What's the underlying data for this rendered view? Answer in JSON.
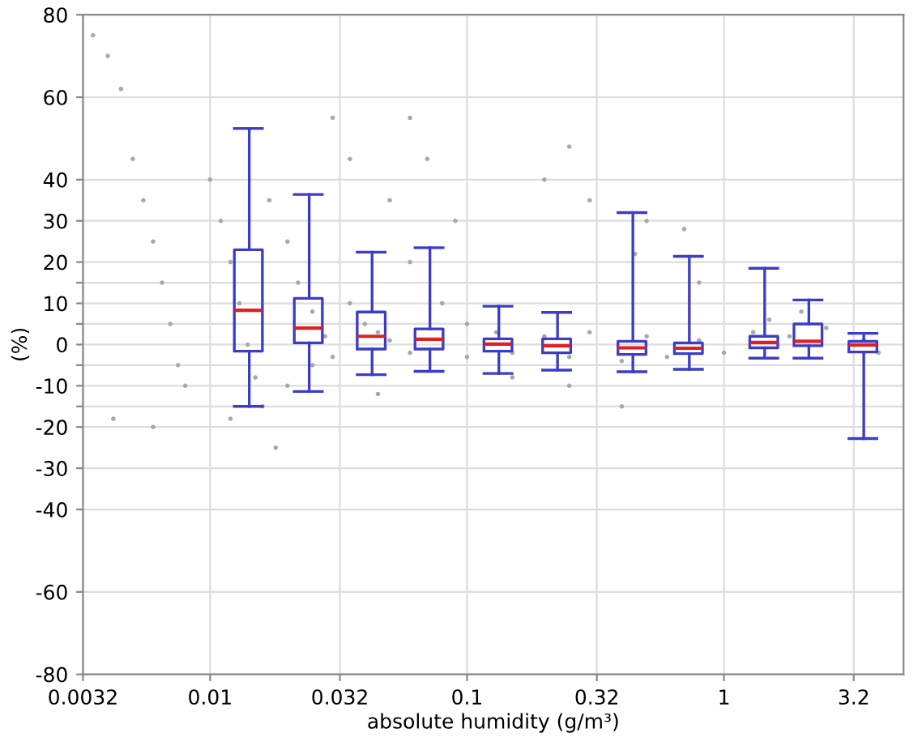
{
  "chart_data": {
    "type": "box",
    "xlabel": "absolute humidity (g/m³)",
    "ylabel": "(%)",
    "log": "x",
    "xlim": [
      0.0032,
      5
    ],
    "xticks": [
      0.0032,
      0.01,
      0.032,
      0.1,
      0.32,
      1,
      3.2
    ],
    "ylim": [
      -80,
      80
    ],
    "yticks": [
      -80,
      -60,
      -40,
      -30,
      -20,
      {
        "value": -15,
        "label": null
      },
      -10,
      {
        "value": -5,
        "label": null
      },
      0,
      {
        "value": 5,
        "label": null
      },
      10,
      {
        "value": 15,
        "label": null
      },
      20,
      30,
      40,
      60,
      80
    ],
    "grid": true,
    "series": [
      {
        "type": "scatter",
        "color": "#a8a8a8",
        "marker": "circle",
        "x": [
          0.0035,
          0.004,
          0.0045,
          0.005,
          0.0055,
          0.006,
          0.0065,
          0.007,
          0.0075,
          0.008,
          0.006,
          0.0042,
          0.01,
          0.011,
          0.012,
          0.013,
          0.014,
          0.015,
          0.016,
          0.018,
          0.017,
          0.02,
          0.022,
          0.025,
          0.028,
          0.03,
          0.02,
          0.025,
          0.035,
          0.04,
          0.045,
          0.05,
          0.06,
          0.035,
          0.05,
          0.06,
          0.08,
          0.1,
          0.1,
          0.13,
          0.15,
          0.2,
          0.25,
          0.3,
          0.4,
          0.5,
          0.6,
          0.8,
          1.0,
          1.3,
          1.8,
          2.5,
          3.5,
          4.0,
          0.06,
          0.07,
          0.09,
          0.2,
          0.25,
          0.3,
          0.5,
          0.45,
          0.7,
          0.8,
          1.5,
          2.0,
          0.25,
          0.4,
          0.15,
          0.045,
          0.03,
          0.012
        ],
        "values": [
          75,
          70,
          62,
          45,
          35,
          25,
          15,
          5,
          -5,
          -10,
          -20,
          -18,
          40,
          30,
          20,
          10,
          0,
          -8,
          -15,
          -25,
          35,
          25,
          15,
          8,
          2,
          -3,
          -10,
          -5,
          10,
          5,
          3,
          1,
          -2,
          45,
          35,
          20,
          10,
          5,
          -3,
          3,
          -2,
          2,
          -3,
          3,
          -4,
          2,
          -3,
          1,
          -2,
          3,
          2,
          4,
          1,
          -2,
          55,
          45,
          30,
          40,
          48,
          35,
          30,
          22,
          28,
          15,
          6,
          8,
          -10,
          -15,
          -8,
          -12,
          55,
          -18
        ]
      },
      {
        "color": "#3c3cc8",
        "x": [
          0.0142,
          0.0243,
          0.0427,
          0.0717,
          0.133,
          0.225,
          0.442,
          0.733,
          1.44,
          2.14,
          3.5
        ],
        "boxes": [
          {
            "low": -15,
            "q1": -1.6,
            "median": 8.3,
            "q3": 23,
            "high": 52.4
          },
          {
            "low": -11.4,
            "q1": 0.4,
            "median": 4,
            "q3": 11.2,
            "high": 36.4
          },
          {
            "low": -7.3,
            "q1": -1.1,
            "median": 2,
            "q3": 7.9,
            "high": 22.4
          },
          {
            "low": -6.5,
            "q1": -1.1,
            "median": 1.3,
            "q3": 3.8,
            "high": 23.5
          },
          {
            "low": -7,
            "q1": -1.6,
            "median": 0.1,
            "q3": 1.4,
            "high": 9.3
          },
          {
            "low": -6.2,
            "q1": -2,
            "median": -0.3,
            "q3": 1.4,
            "high": 7.8
          },
          {
            "low": -6.6,
            "q1": -2.4,
            "median": -0.8,
            "q3": 0.8,
            "high": 32
          },
          {
            "low": -6,
            "q1": -2.2,
            "median": -0.9,
            "q3": 0.4,
            "high": 21.4
          },
          {
            "low": -3.3,
            "q1": -0.8,
            "median": 0.5,
            "q3": 2,
            "high": 18.5
          },
          {
            "low": -3.3,
            "q1": -0.3,
            "median": 0.8,
            "q3": 5,
            "high": 10.8
          },
          {
            "low": -22.8,
            "q1": -1.8,
            "median": -0.1,
            "q3": 0.8,
            "high": 2.7
          }
        ]
      }
    ]
  }
}
